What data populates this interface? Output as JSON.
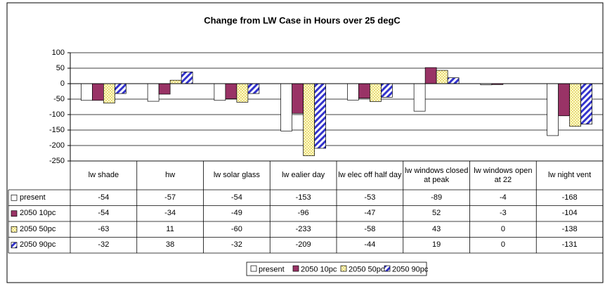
{
  "chart_data": {
    "type": "bar",
    "title": "Change from LW Case in Hours over 25 degC",
    "categories": [
      "lw shade",
      "hw",
      "lw solar glass",
      "lw ealier day",
      "lw elec off half day",
      "lw windows closed at peak",
      "lw windows open at 22",
      "lw night vent"
    ],
    "series": [
      {
        "name": "present",
        "color": "#ffffff",
        "pattern": "solid",
        "values": [
          -54,
          -57,
          -54,
          -153,
          -53,
          -89,
          -4,
          -168
        ]
      },
      {
        "name": "2050 10pc",
        "color": "#993366",
        "pattern": "solid",
        "values": [
          -54,
          -34,
          -49,
          -96,
          -47,
          52,
          -3,
          -104
        ]
      },
      {
        "name": "2050 50pc",
        "color": "#ffffcc",
        "pattern": "dots",
        "values": [
          -63,
          11,
          -60,
          -233,
          -58,
          43,
          0,
          -138
        ]
      },
      {
        "name": "2050 90pc",
        "color": "#3333cc",
        "pattern": "stripes",
        "values": [
          -32,
          38,
          -32,
          -209,
          -44,
          19,
          0,
          -131
        ]
      }
    ],
    "ylim": [
      -250,
      100
    ],
    "yticks": [
      -250,
      -200,
      -150,
      -100,
      -50,
      0,
      50,
      100
    ],
    "grid": true,
    "legend": "bottom"
  }
}
